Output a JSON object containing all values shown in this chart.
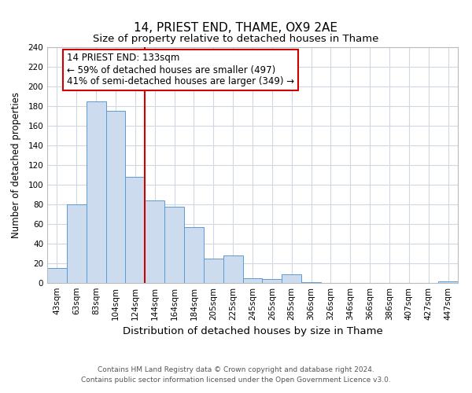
{
  "title": "14, PRIEST END, THAME, OX9 2AE",
  "subtitle": "Size of property relative to detached houses in Thame",
  "xlabel": "Distribution of detached houses by size in Thame",
  "ylabel": "Number of detached properties",
  "bar_labels": [
    "43sqm",
    "63sqm",
    "83sqm",
    "104sqm",
    "124sqm",
    "144sqm",
    "164sqm",
    "184sqm",
    "205sqm",
    "225sqm",
    "245sqm",
    "265sqm",
    "285sqm",
    "306sqm",
    "326sqm",
    "346sqm",
    "366sqm",
    "386sqm",
    "407sqm",
    "427sqm",
    "447sqm"
  ],
  "bar_values": [
    15,
    80,
    185,
    175,
    108,
    84,
    78,
    57,
    25,
    28,
    5,
    4,
    9,
    1,
    0,
    0,
    0,
    0,
    0,
    0,
    2
  ],
  "bar_color": "#ccdcee",
  "bar_edge_color": "#5b9bd5",
  "vline_x": 4.5,
  "vline_color": "#cc0000",
  "annotation_line1": "14 PRIEST END: 133sqm",
  "annotation_line2": "← 59% of detached houses are smaller (497)",
  "annotation_line3": "41% of semi-detached houses are larger (349) →",
  "annotation_box_color": "#ffffff",
  "annotation_box_edge": "#cc0000",
  "ylim": [
    0,
    240
  ],
  "yticks": [
    0,
    20,
    40,
    60,
    80,
    100,
    120,
    140,
    160,
    180,
    200,
    220,
    240
  ],
  "grid_color": "#d0d8e4",
  "footer_line1": "Contains HM Land Registry data © Crown copyright and database right 2024.",
  "footer_line2": "Contains public sector information licensed under the Open Government Licence v3.0.",
  "title_fontsize": 11,
  "subtitle_fontsize": 9.5,
  "xlabel_fontsize": 9.5,
  "ylabel_fontsize": 8.5,
  "tick_fontsize": 7.5,
  "annotation_fontsize": 8.5,
  "footer_fontsize": 6.5
}
